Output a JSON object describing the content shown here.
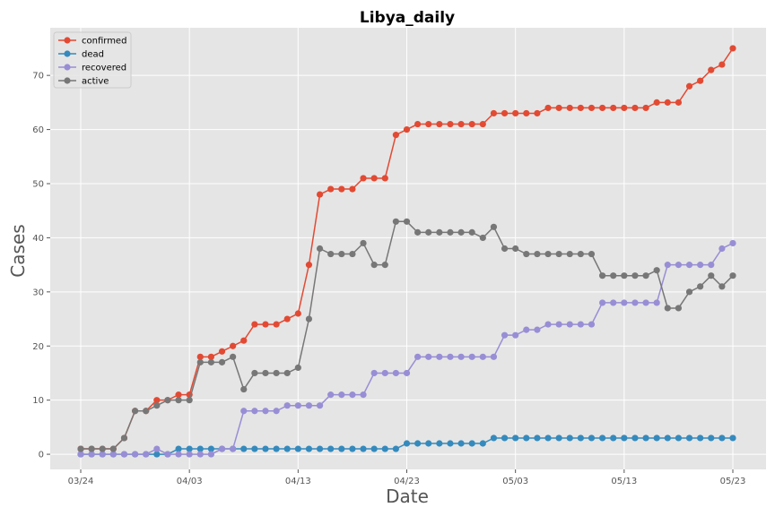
{
  "chart_data": {
    "type": "line",
    "title": "Libya_daily",
    "xlabel": "Date",
    "ylabel": "Cases",
    "start_date": "2020-03-24",
    "num_days": 61,
    "x_ticks": [
      {
        "day": 0,
        "label": "03/24"
      },
      {
        "day": 10,
        "label": "04/03"
      },
      {
        "day": 20,
        "label": "04/13"
      },
      {
        "day": 30,
        "label": "04/23"
      },
      {
        "day": 40,
        "label": "05/03"
      },
      {
        "day": 50,
        "label": "05/13"
      },
      {
        "day": 60,
        "label": "05/23"
      }
    ],
    "ylim": [
      -2.8,
      78.8
    ],
    "y_ticks": [
      0,
      10,
      20,
      30,
      40,
      50,
      60,
      70
    ],
    "grid": true,
    "legend_position": "top-left",
    "series": [
      {
        "name": "confirmed",
        "color": "#E24A33",
        "values": [
          1,
          1,
          1,
          1,
          3,
          8,
          8,
          10,
          10,
          11,
          11,
          18,
          18,
          19,
          20,
          21,
          24,
          24,
          24,
          25,
          26,
          35,
          48,
          49,
          49,
          49,
          51,
          51,
          51,
          59,
          60,
          61,
          61,
          61,
          61,
          61,
          61,
          61,
          63,
          63,
          63,
          63,
          63,
          64,
          64,
          64,
          64,
          64,
          64,
          64,
          64,
          64,
          64,
          65,
          65,
          65,
          68,
          69,
          71,
          72,
          75
        ]
      },
      {
        "name": "dead",
        "color": "#348ABD",
        "values": [
          0,
          0,
          0,
          0,
          0,
          0,
          0,
          0,
          0,
          1,
          1,
          1,
          1,
          1,
          1,
          1,
          1,
          1,
          1,
          1,
          1,
          1,
          1,
          1,
          1,
          1,
          1,
          1,
          1,
          1,
          2,
          2,
          2,
          2,
          2,
          2,
          2,
          2,
          3,
          3,
          3,
          3,
          3,
          3,
          3,
          3,
          3,
          3,
          3,
          3,
          3,
          3,
          3,
          3,
          3,
          3,
          3,
          3,
          3,
          3,
          3
        ]
      },
      {
        "name": "recovered",
        "color": "#988ED5",
        "values": [
          0,
          0,
          0,
          0,
          0,
          0,
          0,
          1,
          0,
          0,
          0,
          0,
          0,
          1,
          1,
          8,
          8,
          8,
          8,
          9,
          9,
          9,
          9,
          11,
          11,
          11,
          11,
          15,
          15,
          15,
          15,
          18,
          18,
          18,
          18,
          18,
          18,
          18,
          18,
          22,
          22,
          23,
          23,
          24,
          24,
          24,
          24,
          24,
          28,
          28,
          28,
          28,
          28,
          28,
          35,
          35,
          35,
          35,
          35,
          38,
          39
        ]
      },
      {
        "name": "active",
        "color": "#777777",
        "values": [
          1,
          1,
          1,
          1,
          3,
          8,
          8,
          9,
          10,
          10,
          10,
          17,
          17,
          17,
          18,
          12,
          15,
          15,
          15,
          15,
          16,
          25,
          38,
          37,
          37,
          37,
          39,
          35,
          35,
          43,
          43,
          41,
          41,
          41,
          41,
          41,
          41,
          40,
          42,
          38,
          38,
          37,
          37,
          37,
          37,
          37,
          37,
          37,
          33,
          33,
          33,
          33,
          33,
          34,
          27,
          27,
          30,
          31,
          33,
          31,
          33
        ]
      }
    ]
  }
}
